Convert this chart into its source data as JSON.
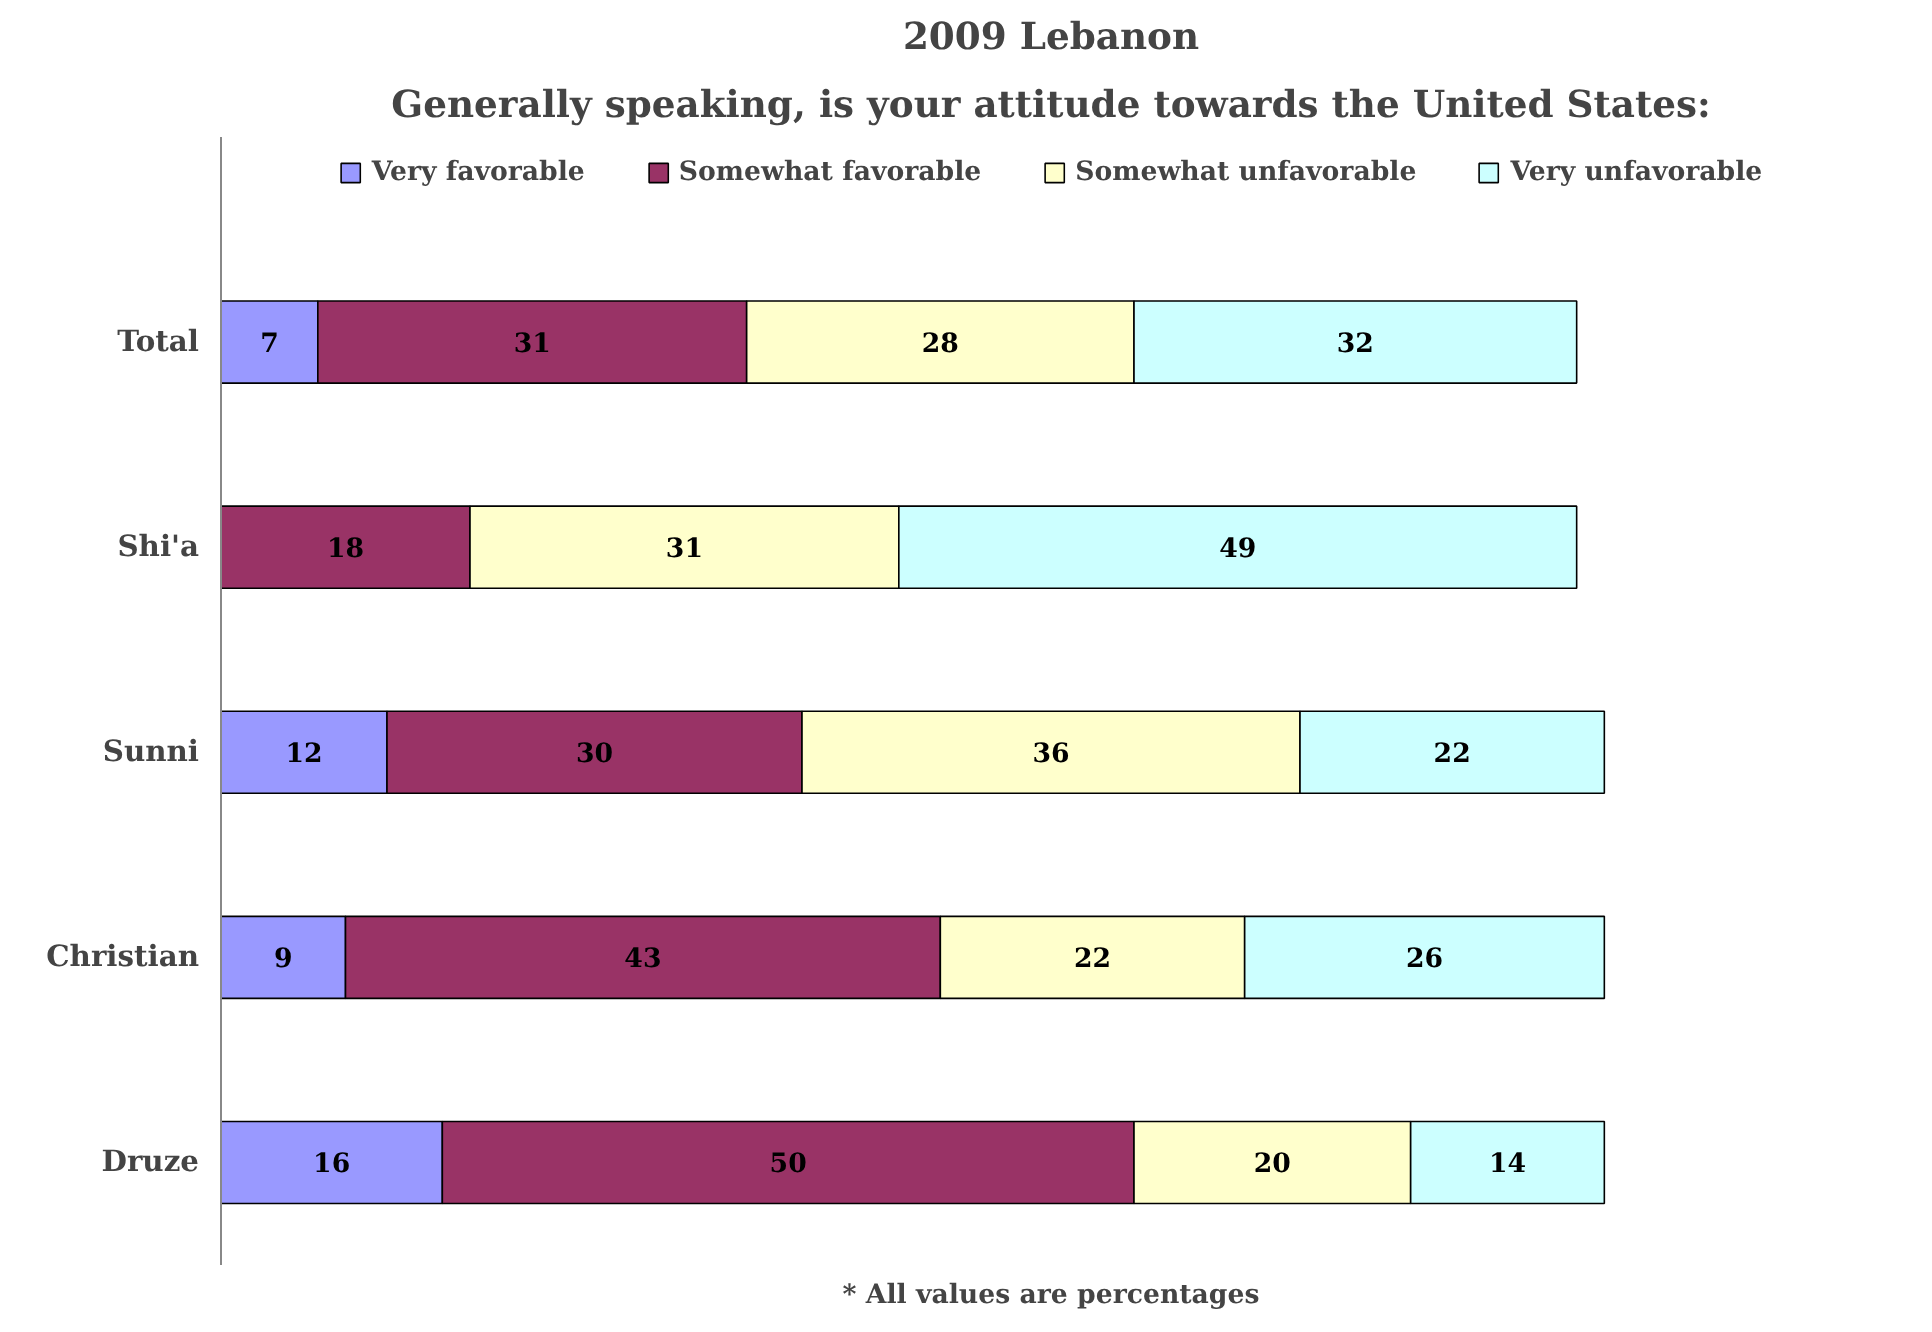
{
  "chart_data": {
    "type": "bar",
    "orientation": "horizontal",
    "stacked": true,
    "title": "2009 Lebanon",
    "subtitle": "Generally speaking, is your attitude towards the United States:",
    "categories": [
      "Total",
      "Shi'a",
      "Sunni",
      "Christian",
      "Druze"
    ],
    "series": [
      {
        "name": "Very favorable",
        "color": "#9999ff",
        "values": [
          7,
          null,
          12,
          9,
          16
        ]
      },
      {
        "name": "Somewhat favorable",
        "color": "#993366",
        "values": [
          31,
          18,
          30,
          43,
          50
        ]
      },
      {
        "name": "Somewhat unfavorable",
        "color": "#ffffcc",
        "values": [
          28,
          31,
          36,
          22,
          20
        ]
      },
      {
        "name": "Very unfavorable",
        "color": "#ccffff",
        "values": [
          32,
          49,
          22,
          26,
          14
        ]
      }
    ],
    "data_labels": true,
    "legend": "top",
    "grid": false,
    "annotations": [
      "* All values are percentages"
    ]
  }
}
